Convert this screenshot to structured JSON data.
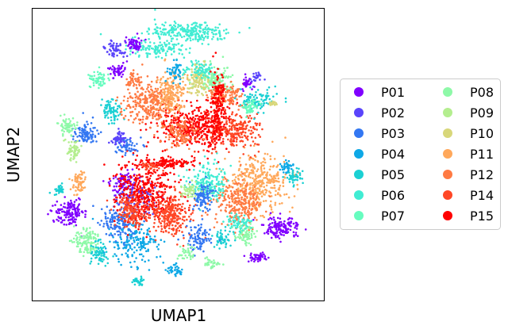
{
  "chart_data": {
    "type": "scatter",
    "xlabel": "UMAP1",
    "ylabel": "UMAP2",
    "ticks": false,
    "grid": false,
    "legend": {
      "placement": "right",
      "columns": 2,
      "entries": [
        "P01",
        "P02",
        "P03",
        "P04",
        "P05",
        "P06",
        "P07",
        "P08",
        "P09",
        "P10",
        "P11",
        "P12",
        "P14",
        "P15"
      ]
    },
    "series": [
      {
        "name": "P01",
        "color": "#8000ff"
      },
      {
        "name": "P02",
        "color": "#5a44fb"
      },
      {
        "name": "P03",
        "color": "#3377f2"
      },
      {
        "name": "P04",
        "color": "#0ea8e6"
      },
      {
        "name": "P05",
        "color": "#1bd0d3"
      },
      {
        "name": "P06",
        "color": "#40ecd3"
      },
      {
        "name": "P07",
        "color": "#67fcbf"
      },
      {
        "name": "P08",
        "color": "#8ef9a8"
      },
      {
        "name": "P09",
        "color": "#b4ee8f"
      },
      {
        "name": "P10",
        "color": "#d8d77a"
      },
      {
        "name": "P11",
        "color": "#ffa85b"
      },
      {
        "name": "P12",
        "color": "#ff7a43"
      },
      {
        "name": "P14",
        "color": "#ff4726"
      },
      {
        "name": "P15",
        "color": "#ff0000"
      }
    ]
  }
}
